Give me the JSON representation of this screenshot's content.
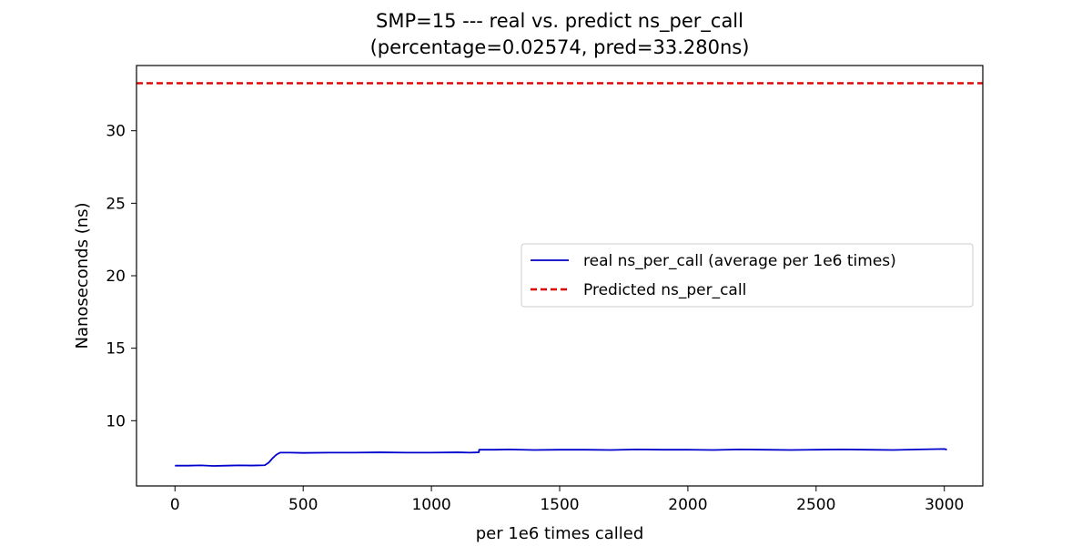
{
  "chart_data": {
    "type": "line",
    "title_line1": "SMP=15 --- real vs. predict ns_per_call",
    "title_line2": "(percentage=0.02574, pred=33.280ns)",
    "xlabel": "per 1e6 times called",
    "ylabel": "Nanoseconds (ns)",
    "xlim": [
      -150,
      3150
    ],
    "ylim": [
      5.5,
      34.5
    ],
    "xticks": [
      0,
      500,
      1000,
      1500,
      2000,
      2500,
      3000
    ],
    "yticks": [
      10,
      15,
      20,
      25,
      30
    ],
    "grid": false,
    "legend_position": "center-right",
    "series": [
      {
        "name": "real ns_per_call (average per 1e6 times)",
        "color": "#0000cc",
        "style": "solid",
        "x": [
          0,
          50,
          100,
          150,
          200,
          250,
          300,
          350,
          365,
          380,
          395,
          410,
          450,
          500,
          600,
          700,
          800,
          900,
          1000,
          1100,
          1150,
          1185,
          1186,
          1250,
          1300,
          1400,
          1500,
          1600,
          1700,
          1800,
          1900,
          2000,
          2100,
          2200,
          2300,
          2400,
          2500,
          2600,
          2700,
          2800,
          2900,
          3000,
          3010
        ],
        "y": [
          6.9,
          6.9,
          6.92,
          6.88,
          6.9,
          6.92,
          6.91,
          6.93,
          7.1,
          7.4,
          7.65,
          7.8,
          7.8,
          7.78,
          7.8,
          7.8,
          7.82,
          7.8,
          7.8,
          7.82,
          7.8,
          7.82,
          8.0,
          8.0,
          8.02,
          7.98,
          8.0,
          8.0,
          7.98,
          8.02,
          8.0,
          8.0,
          7.98,
          8.02,
          8.0,
          7.98,
          8.0,
          8.02,
          8.0,
          7.98,
          8.02,
          8.05,
          8.0
        ]
      },
      {
        "name": "Predicted ns_per_call",
        "color": "#dd0000",
        "style": "dashed",
        "value": 33.28
      }
    ]
  }
}
